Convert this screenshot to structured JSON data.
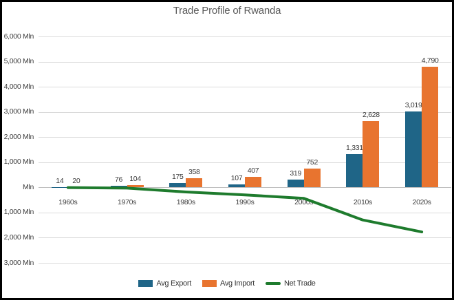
{
  "window": {
    "background": "#FFFFFF",
    "border_color": "#000000"
  },
  "chart_data": {
    "type": "bar",
    "title": "Trade Profile of Rwanda",
    "categories": [
      "1960s",
      "1970s",
      "1980s",
      "1990s",
      "2000s",
      "2010s",
      "2020s"
    ],
    "series": [
      {
        "name": "Avg Export",
        "type": "bar",
        "color": "#1F6587",
        "values": [
          14,
          76,
          175,
          107,
          319,
          1331,
          3019
        ],
        "labels": [
          "14",
          "76",
          "175",
          "107",
          "319",
          "1,331",
          "3,019"
        ]
      },
      {
        "name": "Avg Import",
        "type": "bar",
        "color": "#E8742F",
        "values": [
          20,
          104,
          358,
          407,
          752,
          2628,
          4790
        ],
        "labels": [
          "20",
          "104",
          "358",
          "407",
          "752",
          "2,628",
          "4,790"
        ]
      },
      {
        "name": "Net Trade",
        "type": "line",
        "color": "#1E7B2D",
        "values": [
          -6,
          -28,
          -183,
          -300,
          -433,
          -1297,
          -1771
        ]
      }
    ],
    "y_axis": {
      "ylim": [
        -3000,
        6000
      ],
      "tick_step": 1000,
      "unit": "Mln",
      "tick_labels_top_to_bottom": [
        "6,000 Mln",
        "5,000 Mln",
        "4,000 Mln",
        "3,000 Mln",
        "2,000 Mln",
        "1,000 Mln",
        "Mln",
        "1,000 Mln",
        "2,000 Mln",
        "3,000 Mln"
      ]
    },
    "grid": true,
    "legend_position": "bottom",
    "legend": [
      {
        "label": "Avg Export",
        "swatch": "rect",
        "color": "#1F6587"
      },
      {
        "label": "Avg Import",
        "swatch": "rect",
        "color": "#E8742F"
      },
      {
        "label": "Net Trade",
        "swatch": "line",
        "color": "#1E7B2D"
      }
    ]
  },
  "colors": {
    "gridline": "#DADADA",
    "zero_axis": "#C0C0C0",
    "tick_text": "#404040",
    "title_text": "#595959"
  }
}
